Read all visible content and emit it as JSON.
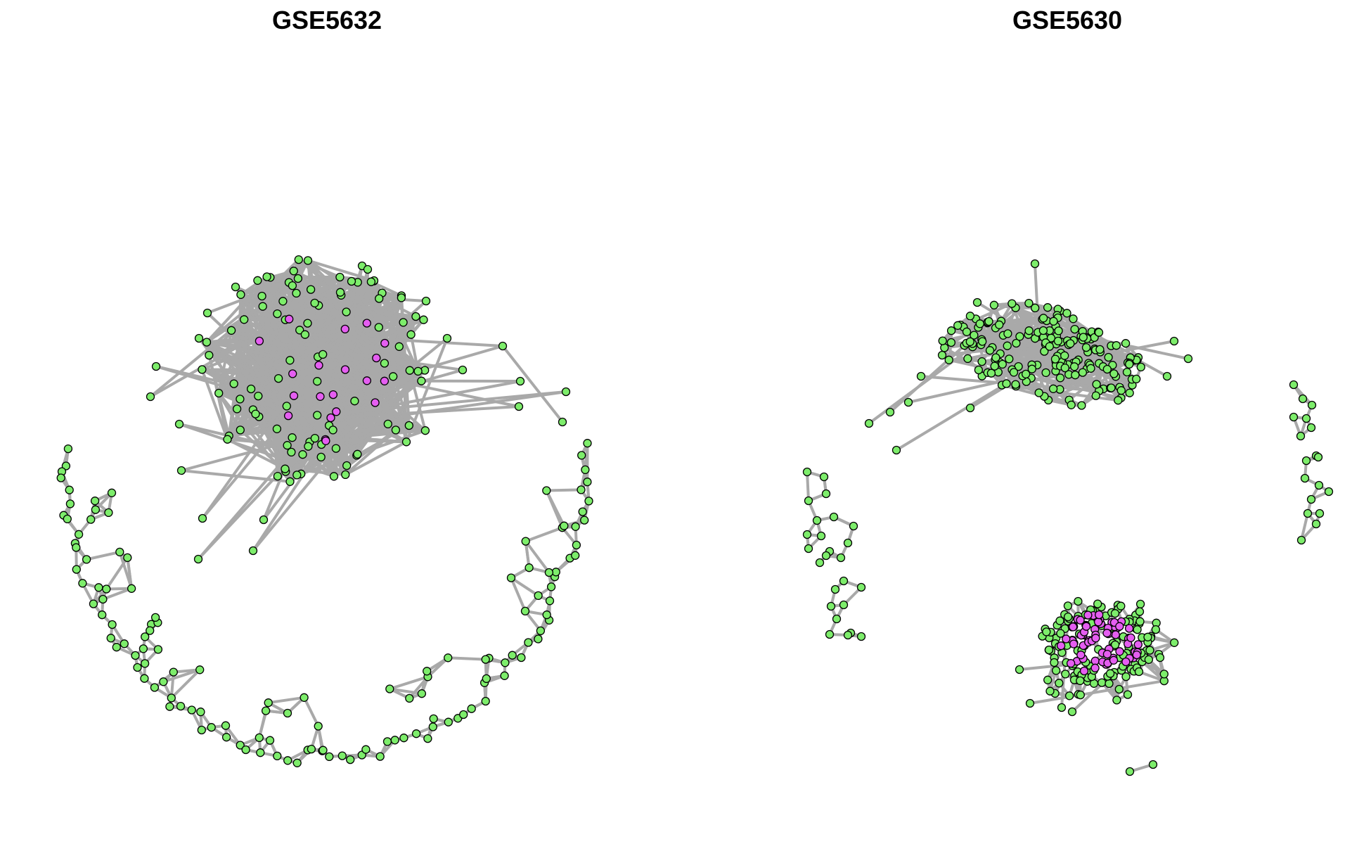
{
  "titles": {
    "left": "GSE5632",
    "right": "GSE5630"
  },
  "colors": {
    "edge": "#a9a9a9",
    "node_normal": "#7ded6b",
    "node_hub": "#e55ef1",
    "node_stroke": "#000000"
  },
  "legend": []
}
